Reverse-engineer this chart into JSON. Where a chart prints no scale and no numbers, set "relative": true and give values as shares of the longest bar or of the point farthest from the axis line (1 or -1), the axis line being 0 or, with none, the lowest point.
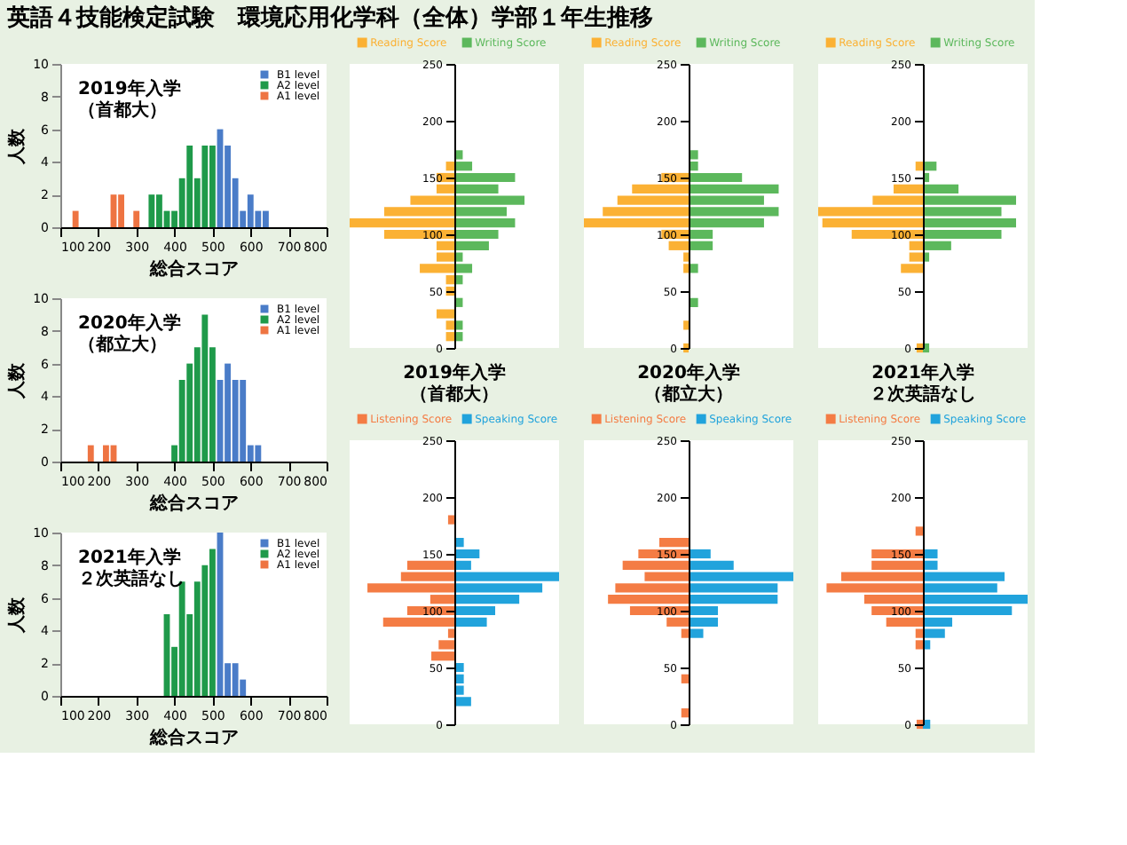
{
  "chart_data": [
    {
      "type": "bar",
      "title": "英語４技能検定試験　環境応用化学科（全体）学部１年生推移",
      "xlabel": "総合スコア",
      "ylabel": "人数",
      "xlim": [
        100,
        800
      ],
      "xticks": [
        100,
        200,
        300,
        400,
        500,
        600,
        700,
        800
      ],
      "ylim": [
        0,
        10
      ],
      "yticks": [
        0,
        2,
        4,
        6,
        8,
        10
      ],
      "legend": "top right",
      "annotations": [
        "2019年入学",
        "（首都大）"
      ],
      "series": [
        {
          "name": "B1 level",
          "color": "#4a7cc8",
          "x": [
            520,
            540,
            560,
            580,
            600,
            620,
            640
          ],
          "values": [
            6,
            5,
            3,
            1,
            2,
            1,
            1
          ]
        },
        {
          "name": "A2 level",
          "color": "#1f9a4a",
          "x": [
            340,
            360,
            380,
            400,
            420,
            440,
            460,
            480,
            500
          ],
          "values": [
            2,
            2,
            1,
            1,
            3,
            5,
            3,
            5,
            5
          ]
        },
        {
          "name": "A1 level",
          "color": "#ee7442",
          "x": [
            140,
            240,
            260,
            300
          ],
          "values": [
            1,
            2,
            2,
            1
          ]
        }
      ]
    },
    {
      "type": "bar",
      "xlabel": "総合スコア",
      "ylabel": "人数",
      "xlim": [
        100,
        800
      ],
      "xticks": [
        100,
        200,
        300,
        400,
        500,
        600,
        700,
        800
      ],
      "ylim": [
        0,
        10
      ],
      "yticks": [
        0,
        2,
        4,
        6,
        8,
        10
      ],
      "legend": "top right",
      "annotations": [
        "2020年入学",
        "（都立大）"
      ],
      "series": [
        {
          "name": "B1 level",
          "color": "#4a7cc8",
          "x": [
            520,
            540,
            560,
            580,
            600,
            620
          ],
          "values": [
            5,
            6,
            5,
            5,
            1,
            1
          ]
        },
        {
          "name": "A2 level",
          "color": "#1f9a4a",
          "x": [
            400,
            420,
            440,
            460,
            480,
            500
          ],
          "values": [
            1,
            5,
            6,
            7,
            9,
            7
          ]
        },
        {
          "name": "A1 level",
          "color": "#ee7442",
          "x": [
            180,
            220,
            240
          ],
          "values": [
            1,
            1,
            1
          ]
        }
      ]
    },
    {
      "type": "bar",
      "xlabel": "総合スコア",
      "ylabel": "人数",
      "xlim": [
        100,
        800
      ],
      "xticks": [
        100,
        200,
        300,
        400,
        500,
        600,
        700,
        800
      ],
      "ylim": [
        0,
        10
      ],
      "yticks": [
        0,
        2,
        4,
        6,
        8,
        10
      ],
      "legend": "top right",
      "annotations": [
        "2021年入学",
        "２次英語なし"
      ],
      "series": [
        {
          "name": "B1 level",
          "color": "#4a7cc8",
          "x": [
            520,
            540,
            560,
            580
          ],
          "values": [
            10,
            2,
            2,
            1
          ]
        },
        {
          "name": "A2 level",
          "color": "#1f9a4a",
          "x": [
            380,
            400,
            420,
            440,
            460,
            480,
            500
          ],
          "values": [
            5,
            3,
            7,
            5,
            7,
            8,
            9
          ]
        },
        {
          "name": "A1 level",
          "color": "#ee7442"
        }
      ]
    },
    {
      "type": "bar",
      "orientation": "horizontal",
      "relative": true,
      "ylim": [
        0,
        250
      ],
      "yticks": [
        0,
        50,
        100,
        150,
        200,
        250
      ],
      "legend": "top",
      "annotations": [
        "2019年入学",
        "（首都大）"
      ],
      "series": [
        {
          "name": "Reading Score",
          "color": "#fbb134",
          "x": [
            160,
            150,
            140,
            130,
            120,
            110,
            100,
            90,
            80,
            70,
            60,
            50,
            30,
            20,
            10
          ],
          "values": [
            -0.08,
            -0.17,
            -0.17,
            -0.42,
            -0.67,
            -1,
            -0.67,
            -0.17,
            -0.17,
            -0.33,
            -0.08,
            -0.08,
            -0.17,
            -0.08,
            -0.08
          ]
        },
        {
          "name": "Writing Score",
          "color": "#5cb85c",
          "x": [
            170,
            160,
            150,
            140,
            130,
            120,
            110,
            100,
            90,
            80,
            70,
            60,
            40,
            20,
            10
          ],
          "values": [
            0.08,
            0.17,
            0.58,
            0.42,
            0.67,
            0.5,
            0.58,
            0.42,
            0.33,
            0.08,
            0.17,
            0.08,
            0.08,
            0.08,
            0.08
          ]
        }
      ]
    },
    {
      "type": "bar",
      "orientation": "horizontal",
      "relative": true,
      "ylim": [
        0,
        250
      ],
      "yticks": [
        0,
        50,
        100,
        150,
        200,
        250
      ],
      "legend": "top",
      "annotations": [
        "2020年入学",
        "（都立大）"
      ],
      "series": [
        {
          "name": "Reading Score",
          "color": "#fbb134",
          "x": [
            150,
            140,
            130,
            120,
            110,
            100,
            90,
            80,
            70,
            20,
            0
          ],
          "values": [
            -0.26,
            -0.54,
            -0.68,
            -0.82,
            -1,
            -0.26,
            -0.19,
            -0.05,
            -0.05,
            -0.05,
            -0.05
          ]
        },
        {
          "name": "Writing Score",
          "color": "#5cb85c",
          "x": [
            170,
            160,
            150,
            140,
            130,
            120,
            110,
            100,
            90,
            70,
            40
          ],
          "values": [
            0.09,
            0.09,
            0.51,
            0.86,
            0.72,
            0.86,
            0.72,
            0.23,
            0.23,
            0.09,
            0.09
          ]
        }
      ]
    },
    {
      "type": "bar",
      "orientation": "horizontal",
      "relative": true,
      "ylim": [
        0,
        250
      ],
      "yticks": [
        0,
        50,
        100,
        150,
        200,
        250
      ],
      "legend": "top",
      "annotations": [
        "2021年入学",
        "２次英語なし"
      ],
      "series": [
        {
          "name": "Reading Score",
          "color": "#fbb134",
          "x": [
            160,
            140,
            130,
            120,
            110,
            100,
            90,
            80,
            70,
            0
          ],
          "values": [
            -0.07,
            -0.28,
            -0.48,
            -1,
            -0.96,
            -0.68,
            -0.13,
            -0.13,
            -0.21,
            -0.06
          ]
        },
        {
          "name": "Writing Score",
          "color": "#5cb85c",
          "x": [
            160,
            150,
            140,
            130,
            120,
            110,
            100,
            90,
            80,
            0
          ],
          "values": [
            0.13,
            0.06,
            0.34,
            0.89,
            0.75,
            0.89,
            0.75,
            0.27,
            0.06,
            0.06
          ]
        }
      ]
    },
    {
      "type": "bar",
      "orientation": "horizontal",
      "relative": true,
      "ylim": [
        0,
        250
      ],
      "yticks": [
        0,
        50,
        100,
        150,
        200,
        250
      ],
      "legend": "top",
      "series": [
        {
          "name": "Listening Score",
          "color": "#f47c44",
          "x": [
            180,
            140,
            130,
            120,
            110,
            100,
            90,
            80,
            70,
            60
          ],
          "values": [
            -0.06,
            -0.45,
            -0.51,
            -0.83,
            -0.23,
            -0.45,
            -0.68,
            -0.06,
            -0.15,
            -0.22
          ]
        },
        {
          "name": "Speaking Score",
          "color": "#21a3dc",
          "x": [
            160,
            150,
            140,
            130,
            120,
            110,
            100,
            90,
            50,
            40,
            30,
            20
          ],
          "values": [
            0.09,
            0.24,
            0.16,
            1,
            0.84,
            0.62,
            0.39,
            0.31,
            0.09,
            0.09,
            0.09,
            0.16
          ]
        }
      ]
    },
    {
      "type": "bar",
      "orientation": "horizontal",
      "relative": true,
      "ylim": [
        0,
        250
      ],
      "yticks": [
        0,
        50,
        100,
        150,
        200,
        250
      ],
      "legend": "top",
      "series": [
        {
          "name": "Listening Score",
          "color": "#f47c44",
          "x": [
            160,
            150,
            140,
            130,
            120,
            110,
            100,
            90,
            80,
            40,
            10
          ],
          "values": [
            -0.28,
            -0.48,
            -0.63,
            -0.42,
            -0.7,
            -0.77,
            -0.56,
            -0.21,
            -0.07,
            -0.07,
            -0.07
          ]
        },
        {
          "name": "Speaking Score",
          "color": "#21a3dc",
          "x": [
            150,
            140,
            130,
            120,
            110,
            100,
            90,
            80
          ],
          "values": [
            0.21,
            0.43,
            1,
            0.85,
            0.85,
            0.28,
            0.28,
            0.14
          ]
        }
      ]
    },
    {
      "type": "bar",
      "orientation": "horizontal",
      "relative": true,
      "ylim": [
        0,
        250
      ],
      "yticks": [
        0,
        50,
        100,
        150,
        200,
        250
      ],
      "legend": "top",
      "series": [
        {
          "name": "Listening Score",
          "color": "#f47c44",
          "x": [
            170,
            150,
            140,
            130,
            120,
            110,
            100,
            90,
            80,
            70,
            0
          ],
          "values": [
            -0.07,
            -0.49,
            -0.49,
            -0.78,
            -0.92,
            -0.56,
            -0.49,
            -0.35,
            -0.07,
            -0.07,
            -0.06
          ]
        },
        {
          "name": "Speaking Score",
          "color": "#21a3dc",
          "x": [
            150,
            140,
            130,
            120,
            110,
            100,
            90,
            80,
            70,
            0
          ],
          "values": [
            0.14,
            0.14,
            0.78,
            0.71,
            1,
            0.85,
            0.28,
            0.21,
            0.07,
            0.07
          ]
        }
      ]
    }
  ]
}
